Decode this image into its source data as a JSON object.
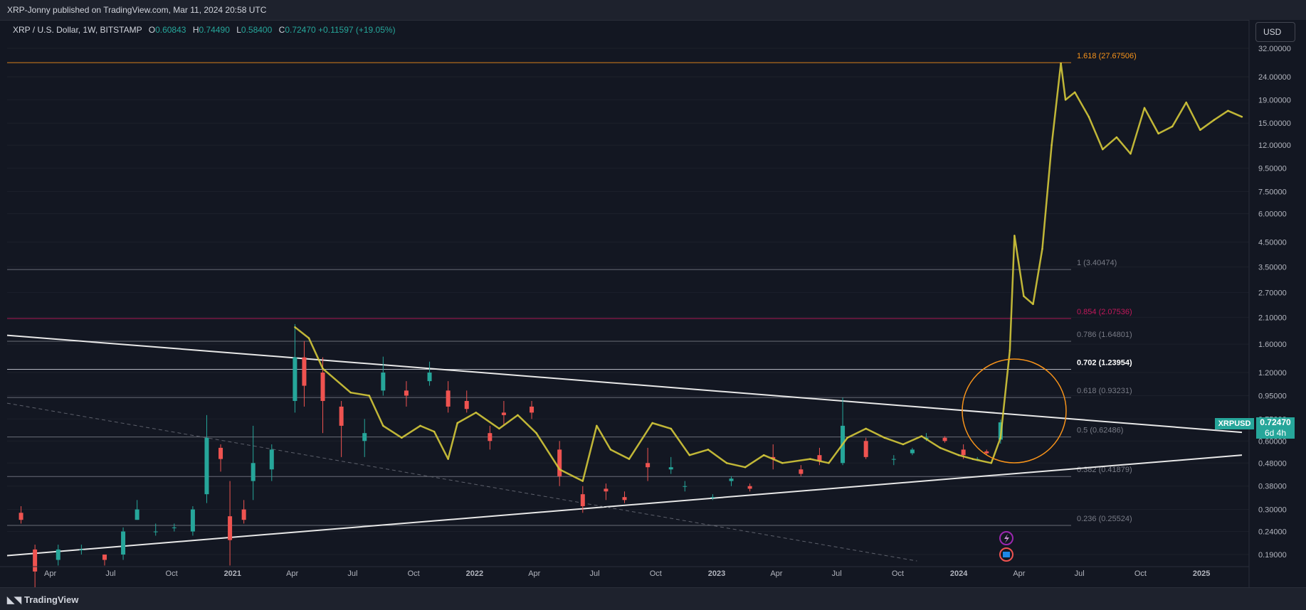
{
  "header": {
    "published": "XRP-Jonny published on TradingView.com, Mar 11, 2024 20:58 UTC"
  },
  "legend": {
    "symbol": "XRP / U.S. Dollar, 1W, BITSTAMP",
    "o_label": "O",
    "o_value": "0.60843",
    "h_label": "H",
    "h_value": "0.74490",
    "l_label": "L",
    "l_value": "0.58400",
    "c_label": "C",
    "c_value": "0.72470",
    "change": "+0.11597 (+19.05%)"
  },
  "currency_button": "USD",
  "footer": {
    "logo_text": "TradingView"
  },
  "last_price": {
    "symbol": "XRPUSD",
    "value": "0.72470",
    "countdown": "6d 4h"
  },
  "colors": {
    "background": "#131722",
    "up": "#26a69a",
    "down": "#ef5350",
    "projection": "#d4c83a",
    "fib_1618": "#f7931a",
    "fib_0854": "#c2185b",
    "circle": "#f7931a"
  },
  "chart_data": {
    "type": "candlestick",
    "y_scale": "log",
    "y_ticks": [
      "32.00000",
      "24.00000",
      "19.00000",
      "15.00000",
      "12.00000",
      "9.50000",
      "7.50000",
      "6.00000",
      "4.50000",
      "3.50000",
      "2.70000",
      "2.10000",
      "1.60000",
      "1.20000",
      "0.95000",
      "0.75000",
      "0.60000",
      "0.48000",
      "0.38000",
      "0.30000",
      "0.24000",
      "0.19000"
    ],
    "x_ticks": [
      "Apr",
      "Jul",
      "Oct",
      "2021",
      "Apr",
      "Jul",
      "Oct",
      "2022",
      "Apr",
      "Jul",
      "Oct",
      "2023",
      "Apr",
      "Jul",
      "Oct",
      "2024",
      "Apr",
      "Jul",
      "Oct",
      "2025"
    ],
    "fib_levels": [
      {
        "label": "1.618 (27.67506)",
        "value": 27.67506
      },
      {
        "label": "1 (3.40474)",
        "value": 3.40474
      },
      {
        "label": "0.854 (2.07536)",
        "value": 2.07536
      },
      {
        "label": "0.786 (1.64801)",
        "value": 1.64801
      },
      {
        "label": "0.702 (1.23954)",
        "value": 1.23954
      },
      {
        "label": "0.618 (0.93231)",
        "value": 0.93231
      },
      {
        "label": "0.5 (0.62486)",
        "value": 0.62486
      },
      {
        "label": "0.382 (0.41879)",
        "value": 0.41879
      },
      {
        "label": "0.236 (0.25524)",
        "value": 0.25524
      }
    ],
    "candles": [
      [
        "2020-02-17",
        0.29,
        0.31,
        0.26,
        0.27
      ],
      [
        "2020-03-09",
        0.2,
        0.21,
        0.11,
        0.16
      ],
      [
        "2020-04-13",
        0.18,
        0.21,
        0.17,
        0.2
      ],
      [
        "2020-05-18",
        0.2,
        0.21,
        0.19,
        0.2
      ],
      [
        "2020-06-22",
        0.19,
        0.19,
        0.17,
        0.18
      ],
      [
        "2020-07-20",
        0.19,
        0.25,
        0.18,
        0.24
      ],
      [
        "2020-08-10",
        0.27,
        0.33,
        0.27,
        0.3
      ],
      [
        "2020-09-07",
        0.24,
        0.26,
        0.23,
        0.24
      ],
      [
        "2020-10-05",
        0.25,
        0.26,
        0.24,
        0.25
      ],
      [
        "2020-11-02",
        0.24,
        0.31,
        0.23,
        0.3
      ],
      [
        "2020-11-23",
        0.35,
        0.78,
        0.32,
        0.62
      ],
      [
        "2020-12-14",
        0.56,
        0.58,
        0.44,
        0.5
      ],
      [
        "2020-12-28",
        0.28,
        0.4,
        0.17,
        0.22
      ],
      [
        "2021-01-18",
        0.3,
        0.33,
        0.26,
        0.27
      ],
      [
        "2021-02-01",
        0.4,
        0.7,
        0.33,
        0.48
      ],
      [
        "2021-03-01",
        0.45,
        0.58,
        0.4,
        0.55
      ],
      [
        "2021-04-05",
        0.9,
        1.96,
        0.8,
        1.4
      ],
      [
        "2021-04-19",
        1.4,
        1.65,
        0.85,
        1.05
      ],
      [
        "2021-05-17",
        1.2,
        1.4,
        0.65,
        0.9
      ],
      [
        "2021-06-14",
        0.85,
        0.9,
        0.51,
        0.7
      ],
      [
        "2021-07-19",
        0.6,
        0.75,
        0.51,
        0.65
      ],
      [
        "2021-08-16",
        1.0,
        1.41,
        0.95,
        1.2
      ],
      [
        "2021-09-20",
        1.0,
        1.1,
        0.85,
        0.95
      ],
      [
        "2021-10-25",
        1.1,
        1.34,
        1.05,
        1.2
      ],
      [
        "2021-11-22",
        1.0,
        1.1,
        0.8,
        0.85
      ],
      [
        "2021-12-20",
        0.9,
        1.0,
        0.8,
        0.83
      ],
      [
        "2022-01-24",
        0.65,
        0.7,
        0.55,
        0.6
      ],
      [
        "2022-02-14",
        0.8,
        0.9,
        0.7,
        0.78
      ],
      [
        "2022-03-28",
        0.85,
        0.9,
        0.75,
        0.8
      ],
      [
        "2022-05-09",
        0.55,
        0.6,
        0.38,
        0.42
      ],
      [
        "2022-06-13",
        0.35,
        0.38,
        0.29,
        0.31
      ],
      [
        "2022-07-18",
        0.37,
        0.39,
        0.33,
        0.36
      ],
      [
        "2022-08-15",
        0.34,
        0.36,
        0.32,
        0.33
      ],
      [
        "2022-09-19",
        0.48,
        0.56,
        0.4,
        0.46
      ],
      [
        "2022-10-24",
        0.45,
        0.51,
        0.43,
        0.46
      ],
      [
        "2022-11-14",
        0.38,
        0.4,
        0.36,
        0.38
      ],
      [
        "2022-12-26",
        0.34,
        0.35,
        0.33,
        0.34
      ],
      [
        "2023-01-23",
        0.4,
        0.42,
        0.38,
        0.41
      ],
      [
        "2023-02-20",
        0.38,
        0.39,
        0.36,
        0.37
      ],
      [
        "2023-03-27",
        0.51,
        0.58,
        0.45,
        0.5
      ],
      [
        "2023-05-08",
        0.45,
        0.47,
        0.42,
        0.43
      ],
      [
        "2023-06-05",
        0.52,
        0.56,
        0.47,
        0.49
      ],
      [
        "2023-07-10",
        0.48,
        0.93,
        0.47,
        0.7
      ],
      [
        "2023-08-14",
        0.6,
        0.62,
        0.5,
        0.51
      ],
      [
        "2023-09-25",
        0.5,
        0.52,
        0.47,
        0.5
      ],
      [
        "2023-10-23",
        0.53,
        0.56,
        0.52,
        0.55
      ],
      [
        "2023-11-13",
        0.61,
        0.65,
        0.6,
        0.62
      ],
      [
        "2023-12-11",
        0.62,
        0.63,
        0.59,
        0.6
      ],
      [
        "2024-01-08",
        0.55,
        0.58,
        0.5,
        0.52
      ],
      [
        "2024-01-29",
        0.5,
        0.51,
        0.49,
        0.5
      ],
      [
        "2024-02-12",
        0.54,
        0.55,
        0.52,
        0.53
      ],
      [
        "2024-03-04",
        0.60843,
        0.7449,
        0.584,
        0.7247
      ]
    ],
    "projection_path": [
      [
        "2021-04-05",
        1.9
      ],
      [
        "2021-04-26",
        1.7
      ],
      [
        "2021-05-17",
        1.25
      ],
      [
        "2021-06-28",
        0.98
      ],
      [
        "2021-07-26",
        0.95
      ],
      [
        "2021-08-16",
        0.7
      ],
      [
        "2021-09-13",
        0.62
      ],
      [
        "2021-10-11",
        0.7
      ],
      [
        "2021-11-01",
        0.66
      ],
      [
        "2021-11-22",
        0.5
      ],
      [
        "2021-12-06",
        0.72
      ],
      [
        "2022-01-03",
        0.8
      ],
      [
        "2022-02-07",
        0.68
      ],
      [
        "2022-03-07",
        0.78
      ],
      [
        "2022-04-04",
        0.65
      ],
      [
        "2022-05-09",
        0.45
      ],
      [
        "2022-06-13",
        0.4
      ],
      [
        "2022-07-04",
        0.7
      ],
      [
        "2022-07-25",
        0.55
      ],
      [
        "2022-08-22",
        0.5
      ],
      [
        "2022-09-26",
        0.72
      ],
      [
        "2022-10-24",
        0.68
      ],
      [
        "2022-11-21",
        0.52
      ],
      [
        "2022-12-19",
        0.55
      ],
      [
        "2023-01-16",
        0.48
      ],
      [
        "2023-02-13",
        0.46
      ],
      [
        "2023-03-13",
        0.52
      ],
      [
        "2023-04-10",
        0.48
      ],
      [
        "2023-05-22",
        0.5
      ],
      [
        "2023-06-19",
        0.48
      ],
      [
        "2023-07-17",
        0.62
      ],
      [
        "2023-08-14",
        0.68
      ],
      [
        "2023-09-11",
        0.62
      ],
      [
        "2023-10-09",
        0.58
      ],
      [
        "2023-11-06",
        0.63
      ],
      [
        "2023-12-04",
        0.56
      ],
      [
        "2024-01-01",
        0.52
      ],
      [
        "2024-01-22",
        0.5
      ],
      [
        "2024-02-19",
        0.48
      ],
      [
        "2024-03-04",
        0.62
      ],
      [
        "2024-03-18",
        1.5
      ],
      [
        "2024-03-25",
        4.8
      ],
      [
        "2024-04-08",
        2.6
      ],
      [
        "2024-04-22",
        2.4
      ],
      [
        "2024-05-06",
        4.2
      ],
      [
        "2024-05-20",
        12.0
      ],
      [
        "2024-06-03",
        27.5
      ],
      [
        "2024-06-10",
        19.0
      ],
      [
        "2024-06-24",
        20.5
      ],
      [
        "2024-07-15",
        16.0
      ],
      [
        "2024-08-05",
        11.5
      ],
      [
        "2024-08-26",
        13.0
      ],
      [
        "2024-09-16",
        11.0
      ],
      [
        "2024-10-07",
        17.5
      ],
      [
        "2024-10-28",
        13.5
      ],
      [
        "2024-11-18",
        14.5
      ],
      [
        "2024-12-09",
        18.5
      ],
      [
        "2024-12-30",
        14.0
      ],
      [
        "2025-01-20",
        15.5
      ],
      [
        "2025-02-10",
        17.0
      ],
      [
        "2025-03-03",
        16.0
      ]
    ],
    "trendlines": [
      {
        "name": "upper",
        "from": [
          "2020-01-27",
          1.75
        ],
        "to": [
          "2025-03-03",
          0.655
        ]
      },
      {
        "name": "lower",
        "from": [
          "2020-01-27",
          0.188
        ],
        "to": [
          "2025-03-03",
          0.52
        ]
      },
      {
        "name": "dashed",
        "from": [
          "2020-01-27",
          0.88
        ],
        "to": [
          "2023-10-30",
          0.178
        ]
      }
    ]
  }
}
